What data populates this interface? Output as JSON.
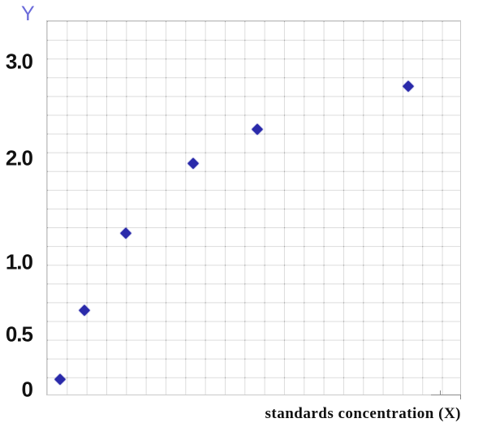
{
  "chart_data": {
    "type": "scatter",
    "title": "",
    "xlabel": "standards concentration (X)",
    "ylabel": "Y",
    "marker": "diamond",
    "grid": true,
    "legend": false,
    "x_tick_labels": [],
    "y_tick_labels": [
      "0",
      "0.5",
      "1.0",
      "2.0",
      "3.0"
    ],
    "y_ticks": [
      {
        "label": "3.0",
        "y_pct": 11.0
      },
      {
        "label": "2.0",
        "y_pct": 36.8
      },
      {
        "label": "1.0",
        "y_pct": 64.5
      },
      {
        "label": "0.5",
        "y_pct": 83.8
      },
      {
        "label": "0",
        "y_pct": 98.5
      }
    ],
    "points": [
      {
        "x_pct": 3.1,
        "y_pct": 95.9,
        "y_value_est": 0.09
      },
      {
        "x_pct": 9.1,
        "y_pct": 77.3,
        "y_value_est": 0.67
      },
      {
        "x_pct": 19.0,
        "y_pct": 56.8,
        "y_value_est": 1.28
      },
      {
        "x_pct": 35.4,
        "y_pct": 38.0,
        "y_value_est": 1.97
      },
      {
        "x_pct": 50.8,
        "y_pct": 28.9,
        "y_value_est": 2.32
      },
      {
        "x_pct": 87.5,
        "y_pct": 17.3,
        "y_value_est": 2.76
      }
    ],
    "colors": {
      "point": "#2a2aaa",
      "y_axis_title": "#6a6ada",
      "tick_label": "#111111",
      "x_axis_label": "#111111",
      "grid_line": "#dcdcdc",
      "grid_dot": "#9a9a9a",
      "plot_border": "#c9c9c9",
      "corner_mark": "#8a8a8a"
    }
  }
}
